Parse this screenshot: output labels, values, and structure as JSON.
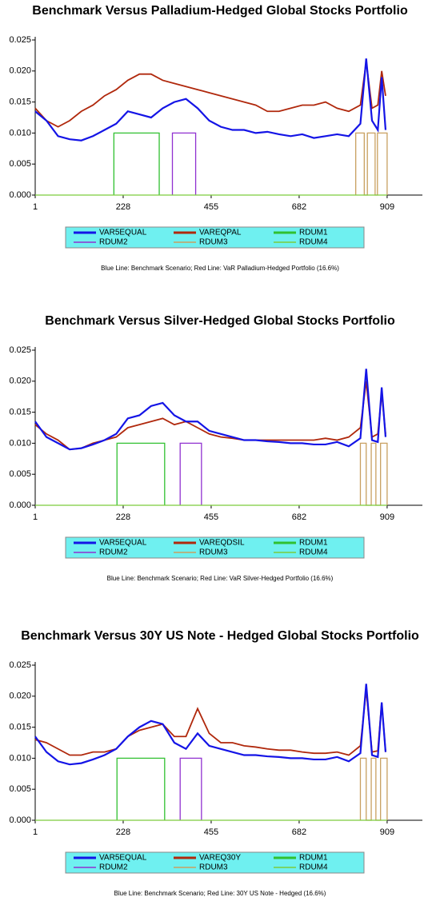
{
  "chart_data": [
    {
      "type": "line",
      "title": "Benchmark Versus Palladium-Hedged Global Stocks Portfolio",
      "caption": "Blue Line: Benchmark Scenario; Red Line: VaR Palladium-Hedged Portfolio (16.6%)",
      "xlim": [
        1,
        1000
      ],
      "xticks": [
        1,
        228,
        455,
        682,
        909
      ],
      "ylim": [
        0,
        0.025
      ],
      "yticks": [
        {
          "value": 0,
          "label": "0.000"
        },
        0.005,
        {
          "value": 0.01,
          "label": "0.010"
        },
        0.015,
        {
          "value": 0.02,
          "label": "0.020"
        },
        0.025
      ],
      "series": [
        {
          "name": "VAR5EQUAL",
          "color": "#1414e6",
          "x": [
            1,
            30,
            60,
            90,
            120,
            150,
            180,
            210,
            240,
            270,
            300,
            330,
            360,
            390,
            420,
            450,
            480,
            510,
            540,
            570,
            600,
            630,
            660,
            690,
            720,
            750,
            780,
            810,
            840,
            855,
            870,
            885,
            895,
            905
          ],
          "values": [
            0.0135,
            0.012,
            0.0095,
            0.009,
            0.0088,
            0.0095,
            0.0105,
            0.0115,
            0.0135,
            0.013,
            0.0125,
            0.014,
            0.015,
            0.0155,
            0.014,
            0.012,
            0.011,
            0.0105,
            0.0105,
            0.01,
            0.0102,
            0.0098,
            0.0095,
            0.0098,
            0.0092,
            0.0095,
            0.0098,
            0.0095,
            0.0115,
            0.022,
            0.012,
            0.0105,
            0.019,
            0.0105
          ]
        },
        {
          "name": "VAREQPAL",
          "color": "#b0280c",
          "x": [
            1,
            30,
            60,
            90,
            120,
            150,
            180,
            210,
            240,
            270,
            300,
            330,
            360,
            390,
            420,
            450,
            480,
            510,
            540,
            570,
            600,
            630,
            660,
            690,
            720,
            750,
            780,
            810,
            840,
            855,
            870,
            885,
            895,
            905
          ],
          "values": [
            0.014,
            0.012,
            0.011,
            0.012,
            0.0135,
            0.0145,
            0.016,
            0.017,
            0.0185,
            0.0195,
            0.0195,
            0.0185,
            0.018,
            0.0175,
            0.017,
            0.0165,
            0.016,
            0.0155,
            0.015,
            0.0145,
            0.0135,
            0.0135,
            0.014,
            0.0145,
            0.0145,
            0.015,
            0.014,
            0.0135,
            0.0145,
            0.0215,
            0.014,
            0.0145,
            0.02,
            0.016
          ]
        },
        {
          "name": "RDUM1",
          "color": "#30c030",
          "x": [
            204,
            204,
            321,
            321
          ],
          "values": [
            0,
            0.01,
            0.01,
            0
          ]
        },
        {
          "name": "RDUM2",
          "color": "#9030d0",
          "x": [
            355,
            355,
            415,
            415
          ],
          "values": [
            0,
            0.01,
            0.01,
            0
          ]
        },
        {
          "name": "RDUM3",
          "color": "#c8a060",
          "x": [
            828,
            828,
            850,
            850,
            858,
            858,
            878,
            878,
            884,
            884,
            909,
            909
          ],
          "values": [
            0,
            0.01,
            0.01,
            0,
            0,
            0.01,
            0.01,
            0,
            0,
            0.01,
            0.01,
            0
          ]
        },
        {
          "name": "RDUM4",
          "color": "#7ccc3c",
          "x": [
            1,
            909
          ],
          "values": [
            0,
            0
          ]
        }
      ]
    },
    {
      "type": "line",
      "title": "Benchmark Versus Silver-Hedged Global Stocks Portfolio",
      "caption": "Blue Line: Benchmark Scenario; Red Line: VaR Silver-Hedged Portfolio (16.6%)",
      "xlim": [
        1,
        1000
      ],
      "xticks": [
        1,
        228,
        455,
        682,
        909
      ],
      "ylim": [
        0,
        0.025
      ],
      "yticks": [
        {
          "value": 0,
          "label": "0.000"
        },
        0.005,
        {
          "value": 0.01,
          "label": "0.010"
        },
        0.015,
        {
          "value": 0.02,
          "label": "0.020"
        },
        0.025
      ],
      "series": [
        {
          "name": "VAR5EQUAL",
          "color": "#1414e6",
          "x": [
            1,
            30,
            60,
            90,
            120,
            150,
            180,
            210,
            240,
            270,
            300,
            330,
            360,
            390,
            420,
            450,
            480,
            510,
            540,
            570,
            600,
            630,
            660,
            690,
            720,
            750,
            780,
            810,
            840,
            855,
            870,
            885,
            895,
            905
          ],
          "values": [
            0.0135,
            0.011,
            0.01,
            0.009,
            0.0092,
            0.0098,
            0.0105,
            0.0115,
            0.014,
            0.0145,
            0.016,
            0.0165,
            0.0145,
            0.0135,
            0.0135,
            0.012,
            0.0115,
            0.011,
            0.0105,
            0.0105,
            0.0103,
            0.0102,
            0.01,
            0.01,
            0.0098,
            0.0098,
            0.0102,
            0.0095,
            0.0108,
            0.022,
            0.0105,
            0.0102,
            0.019,
            0.011
          ]
        },
        {
          "name": "VAREQDSIL",
          "color": "#b0280c",
          "x": [
            1,
            30,
            60,
            90,
            120,
            150,
            180,
            210,
            240,
            270,
            300,
            330,
            360,
            390,
            420,
            450,
            480,
            510,
            540,
            570,
            600,
            630,
            660,
            690,
            720,
            750,
            780,
            810,
            840,
            855,
            870,
            885,
            895,
            905
          ],
          "values": [
            0.013,
            0.0115,
            0.0105,
            0.009,
            0.0092,
            0.01,
            0.0105,
            0.011,
            0.0125,
            0.013,
            0.0135,
            0.014,
            0.013,
            0.0135,
            0.0125,
            0.0115,
            0.011,
            0.0108,
            0.0105,
            0.0105,
            0.0105,
            0.0105,
            0.0105,
            0.0105,
            0.0105,
            0.0108,
            0.0105,
            0.011,
            0.0125,
            0.02,
            0.011,
            0.0115,
            0.018,
            0.0115
          ]
        },
        {
          "name": "RDUM1",
          "color": "#30c030",
          "x": [
            212,
            212,
            335,
            335
          ],
          "values": [
            0,
            0.01,
            0.01,
            0
          ]
        },
        {
          "name": "RDUM2",
          "color": "#9030d0",
          "x": [
            375,
            375,
            430,
            430
          ],
          "values": [
            0,
            0.01,
            0.01,
            0
          ]
        },
        {
          "name": "RDUM3",
          "color": "#c8a060",
          "x": [
            840,
            840,
            855,
            855,
            868,
            868,
            880,
            880,
            892,
            892,
            909,
            909
          ],
          "values": [
            0,
            0.01,
            0.01,
            0,
            0,
            0.01,
            0.01,
            0,
            0,
            0.01,
            0.01,
            0
          ]
        },
        {
          "name": "RDUM4",
          "color": "#7ccc3c",
          "x": [
            1,
            909
          ],
          "values": [
            0,
            0
          ]
        }
      ]
    },
    {
      "type": "line",
      "title": "Benchmark Versus 30Y US Note - Hedged Global Stocks Portfolio",
      "caption": "Blue Line: Benchmark Scenario; Red Line: 30Y US Note - Hedged (16.6%)",
      "xlim": [
        1,
        1000
      ],
      "xticks": [
        1,
        228,
        455,
        682,
        909
      ],
      "ylim": [
        0,
        0.025
      ],
      "yticks": [
        {
          "value": 0,
          "label": "0.000"
        },
        0.005,
        {
          "value": 0.01,
          "label": "0.010"
        },
        0.015,
        {
          "value": 0.02,
          "label": "0.020"
        },
        0.025
      ],
      "series": [
        {
          "name": "VAR5EQUAL",
          "color": "#1414e6",
          "x": [
            1,
            30,
            60,
            90,
            120,
            150,
            180,
            210,
            240,
            270,
            300,
            330,
            360,
            390,
            420,
            450,
            480,
            510,
            540,
            570,
            600,
            630,
            660,
            690,
            720,
            750,
            780,
            810,
            840,
            855,
            870,
            885,
            895,
            905
          ],
          "values": [
            0.0135,
            0.011,
            0.0095,
            0.009,
            0.0092,
            0.0098,
            0.0105,
            0.0115,
            0.0135,
            0.015,
            0.016,
            0.0155,
            0.0125,
            0.0115,
            0.014,
            0.012,
            0.0115,
            0.011,
            0.0105,
            0.0105,
            0.0103,
            0.0102,
            0.01,
            0.01,
            0.0098,
            0.0098,
            0.0102,
            0.0095,
            0.0108,
            0.022,
            0.0105,
            0.0102,
            0.019,
            0.011
          ]
        },
        {
          "name": "VAREQ30Y",
          "color": "#b0280c",
          "x": [
            1,
            30,
            60,
            90,
            120,
            150,
            180,
            210,
            240,
            270,
            300,
            330,
            360,
            390,
            420,
            450,
            480,
            510,
            540,
            570,
            600,
            630,
            660,
            690,
            720,
            750,
            780,
            810,
            840,
            855,
            870,
            885,
            895,
            905
          ],
          "values": [
            0.013,
            0.0125,
            0.0115,
            0.0105,
            0.0105,
            0.011,
            0.011,
            0.0115,
            0.0135,
            0.0145,
            0.015,
            0.0155,
            0.0135,
            0.0135,
            0.018,
            0.014,
            0.0125,
            0.0125,
            0.012,
            0.0118,
            0.0115,
            0.0113,
            0.0113,
            0.011,
            0.0108,
            0.0108,
            0.011,
            0.0105,
            0.012,
            0.021,
            0.011,
            0.0112,
            0.019,
            0.011
          ]
        },
        {
          "name": "RDUM1",
          "color": "#30c030",
          "x": [
            212,
            212,
            335,
            335
          ],
          "values": [
            0,
            0.01,
            0.01,
            0
          ]
        },
        {
          "name": "RDUM2",
          "color": "#9030d0",
          "x": [
            375,
            375,
            430,
            430
          ],
          "values": [
            0,
            0.01,
            0.01,
            0
          ]
        },
        {
          "name": "RDUM3",
          "color": "#c8a060",
          "x": [
            840,
            840,
            855,
            855,
            868,
            868,
            880,
            880,
            892,
            892,
            909,
            909
          ],
          "values": [
            0,
            0.01,
            0.01,
            0,
            0,
            0.01,
            0.01,
            0,
            0,
            0.01,
            0.01,
            0
          ]
        },
        {
          "name": "RDUM4",
          "color": "#7ccc3c",
          "x": [
            1,
            909
          ],
          "values": [
            0,
            0
          ]
        }
      ]
    }
  ]
}
